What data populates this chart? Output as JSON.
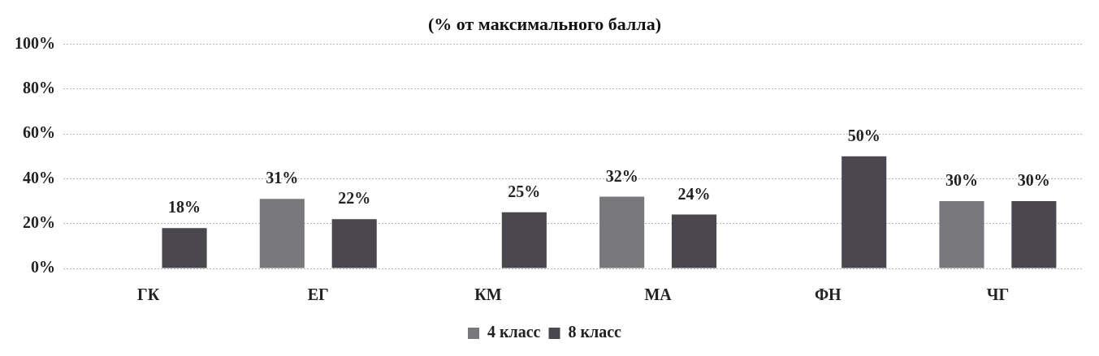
{
  "chart_data": {
    "type": "bar",
    "title": "(% от максимального балла)",
    "categories": [
      "ГК",
      "ЕГ",
      "КМ",
      "МА",
      "ФН",
      "ЧГ"
    ],
    "series": [
      {
        "name": "4 класс",
        "color": "#78777c",
        "values": [
          null,
          31,
          null,
          32,
          null,
          30
        ],
        "value_labels": [
          null,
          "31%",
          null,
          "32%",
          null,
          "30%"
        ]
      },
      {
        "name": "8 класс",
        "color": "#4a484e",
        "values": [
          18,
          22,
          25,
          24,
          50,
          30
        ],
        "value_labels": [
          "18%",
          "22%",
          "25%",
          "24%",
          "50%",
          "30%"
        ]
      }
    ],
    "ylim": [
      0,
      100
    ],
    "yticks": [
      {
        "value": 0,
        "label": "0%"
      },
      {
        "value": 20,
        "label": "20%"
      },
      {
        "value": 40,
        "label": "40%"
      },
      {
        "value": 60,
        "label": "60%"
      },
      {
        "value": 80,
        "label": "80%"
      },
      {
        "value": 100,
        "label": "100%"
      }
    ],
    "grid": "y",
    "legend": "bottom"
  }
}
